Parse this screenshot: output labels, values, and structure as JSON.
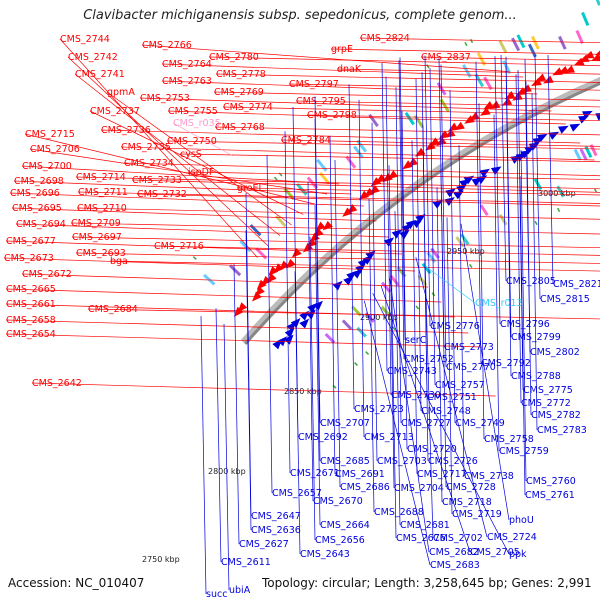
{
  "title": "Clavibacter michiganensis subsp. sepedonicus, complete genom...",
  "footer": {
    "accession": "Accession: NC_010407",
    "topology": "Topology: circular; Length: 3,258,645 bp; Genes: 2,991"
  },
  "ticks": [
    "3000 kbp",
    "2950 kbp",
    "2900 kbp",
    "2850 kbp",
    "2800 kbp",
    "2750 kbp"
  ],
  "colors": {
    "forward": "#ff0000",
    "reverse": "#0000dd",
    "backbone": "#888888",
    "rna_label": "#33ccff",
    "pink_label": "#ff99cc"
  },
  "labels_red": [
    "CMS_2744",
    "CMS_2742",
    "CMS_2741",
    "gpmA",
    "CMS_2737",
    "CMS_2715",
    "CMS_2706",
    "CMS_2700",
    "CMS_2698",
    "CMS_2696",
    "CMS_2695",
    "CMS_2694",
    "CMS_2677",
    "CMS_2673",
    "CMS_2672",
    "CMS_2665",
    "CMS_2661",
    "CMS_2658",
    "CMS_2654",
    "CMS_2642",
    "CMS_2766",
    "CMS_2764",
    "CMS_2763",
    "CMS_2753",
    "CMS_2755",
    "CMS_2736",
    "CMS_2735",
    "CMS_2734",
    "CMS_2733",
    "CMS_2732",
    "CMS_2714",
    "CMS_2711",
    "CMS_2710",
    "CMS_2709",
    "CMS_2697",
    "CMS_2693",
    "bga",
    "CMS_2684",
    "CMS_2716",
    "CMS_2780",
    "CMS_2778",
    "CMS_2769",
    "CMS_2774",
    "CMS_2768",
    "CMS_2750",
    "cysS",
    "ispDF",
    "groEL",
    "CMS_2784",
    "CMS_2797",
    "CMS_2795",
    "CMS_2798",
    "grpE",
    "dnaK",
    "CMS_2824",
    "CMS_2837"
  ],
  "labels_pink": [
    "CMS_r035"
  ],
  "labels_blue": [
    "CMS_2805",
    "CMS_2821",
    "CMS_2815",
    "CMS_2776",
    "CMS_2796",
    "CMS_2799",
    "serC",
    "CMS_2773",
    "CMS_2802",
    "CMS_2752",
    "CMS_2792",
    "CMS_2743",
    "CMS_2770",
    "CMS_2788",
    "CMS_2757",
    "CMS_2775",
    "CMS_2751",
    "CMS_2772",
    "CMS_2730",
    "CMS_2748",
    "CMS_2782",
    "CMS_2723",
    "CMS_2727",
    "CMS_2749",
    "CMS_2783",
    "CMS_2707",
    "CMS_2713",
    "CMS_2758",
    "CMS_2692",
    "CMS_2720",
    "CMS_2759",
    "CMS_2685",
    "CMS_2703",
    "CMS_2726",
    "CMS_2671",
    "CMS_2691",
    "CMS_2717",
    "CMS_2738",
    "CMS_2760",
    "CMS_2657",
    "CMS_2686",
    "CMS_2704",
    "CMS_2728",
    "CMS_2761",
    "CMS_2670",
    "CMS_2718",
    "CMS_2647",
    "CMS_2688",
    "CMS_2664",
    "CMS_2681",
    "CMS_2719",
    "phoU",
    "CMS_2636",
    "CMS_2656",
    "CMS_2676",
    "CMS_2702",
    "CMS_2724",
    "CMS_2627",
    "CMS_2643",
    "CMS_2682",
    "CMS_2705",
    "ppk",
    "CMS_2683",
    "CMS_2611",
    "succ",
    "ubiA"
  ],
  "labels_rna": [
    "CMS_r013"
  ]
}
